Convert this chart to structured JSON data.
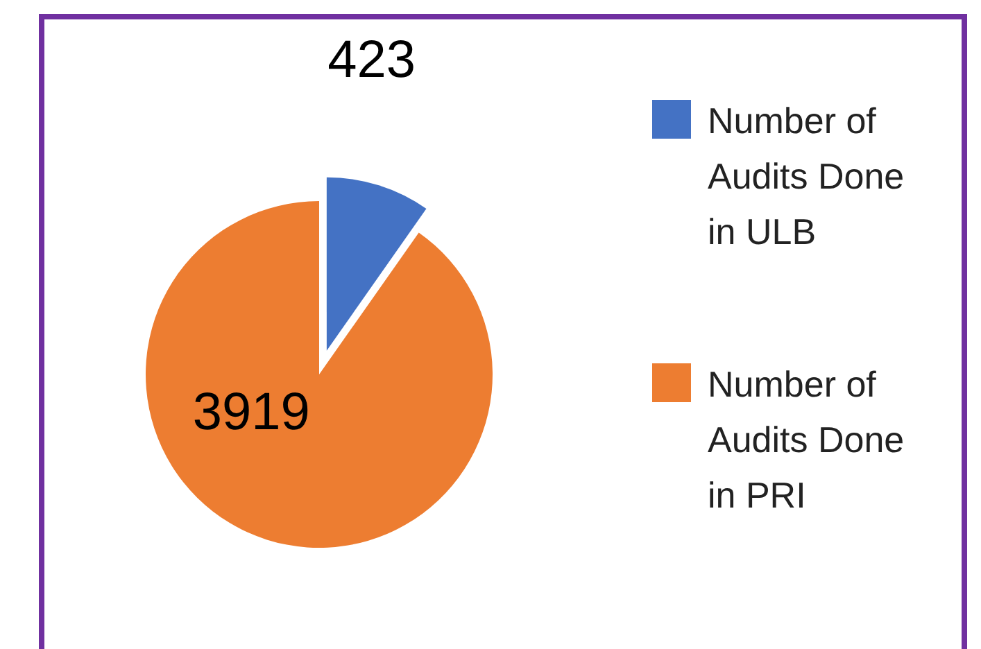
{
  "chart_data": {
    "type": "pie",
    "categories": [
      "Number of Audits Done in ULB",
      "Number of Audits Done in PRI"
    ],
    "values": [
      423,
      3919
    ],
    "colors": [
      "#4472c4",
      "#ed7d31"
    ],
    "data_labels": true,
    "legend": "right"
  }
}
